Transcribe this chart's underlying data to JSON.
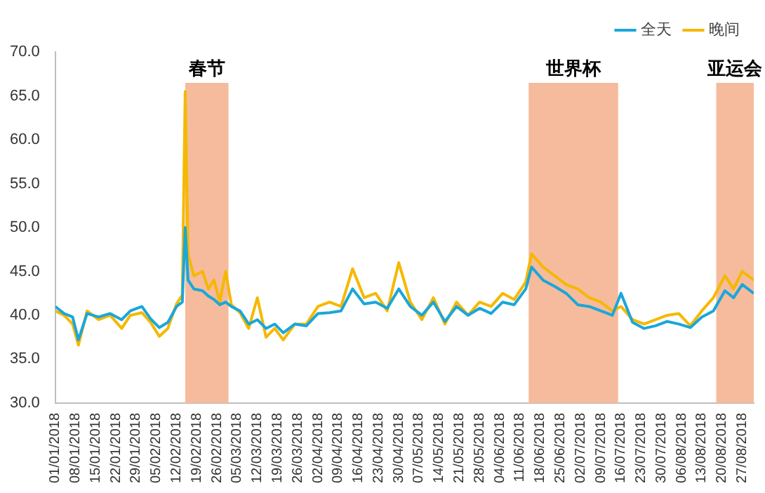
{
  "chart_data": {
    "type": "line",
    "legend": "top right",
    "grid": false,
    "marker": "none",
    "line_style": "solid",
    "x": [
      "2018-01-01",
      "2018-01-04",
      "2018-01-07",
      "2018-01-09",
      "2018-01-12",
      "2018-01-16",
      "2018-01-20",
      "2018-01-24",
      "2018-01-27",
      "2018-01-31",
      "2018-02-03",
      "2018-02-06",
      "2018-02-09",
      "2018-02-12",
      "2018-02-14",
      "2018-02-15",
      "2018-02-16",
      "2018-02-18",
      "2018-02-21",
      "2018-02-23",
      "2018-02-25",
      "2018-02-27",
      "2018-03-01",
      "2018-03-03",
      "2018-03-06",
      "2018-03-09",
      "2018-03-12",
      "2018-03-15",
      "2018-03-18",
      "2018-03-21",
      "2018-03-25",
      "2018-03-29",
      "2018-04-02",
      "2018-04-06",
      "2018-04-10",
      "2018-04-14",
      "2018-04-18",
      "2018-04-22",
      "2018-04-26",
      "2018-04-30",
      "2018-05-04",
      "2018-05-08",
      "2018-05-12",
      "2018-05-16",
      "2018-05-20",
      "2018-05-24",
      "2018-05-28",
      "2018-06-01",
      "2018-06-05",
      "2018-06-09",
      "2018-06-13",
      "2018-06-15",
      "2018-06-19",
      "2018-06-23",
      "2018-06-27",
      "2018-07-01",
      "2018-07-05",
      "2018-07-09",
      "2018-07-13",
      "2018-07-16",
      "2018-07-20",
      "2018-07-24",
      "2018-07-28",
      "2018-08-01",
      "2018-08-05",
      "2018-08-09",
      "2018-08-13",
      "2018-08-17",
      "2018-08-21",
      "2018-08-24",
      "2018-08-27",
      "2018-08-31"
    ],
    "series": [
      {
        "name": "全天",
        "color": "#1aa7d8",
        "values": [
          41.0,
          40.2,
          39.8,
          37.2,
          40.2,
          39.8,
          40.2,
          39.5,
          40.5,
          41.0,
          39.6,
          38.6,
          39.2,
          41.0,
          41.5,
          50.0,
          44.0,
          43.0,
          42.8,
          42.2,
          41.8,
          41.2,
          41.5,
          41.0,
          40.5,
          39.0,
          39.5,
          38.5,
          39.0,
          38.0,
          39.0,
          38.8,
          40.2,
          40.3,
          40.5,
          43.0,
          41.3,
          41.5,
          40.8,
          43.0,
          41.0,
          40.0,
          41.5,
          39.3,
          41.0,
          40.0,
          40.8,
          40.2,
          41.5,
          41.2,
          43.0,
          45.5,
          44.0,
          43.3,
          42.5,
          41.2,
          41.0,
          40.5,
          40.0,
          42.5,
          39.2,
          38.5,
          38.8,
          39.3,
          39.0,
          38.6,
          39.8,
          40.5,
          42.8,
          42.0,
          43.5,
          42.5
        ]
      },
      {
        "name": "晚间",
        "color": "#f5b800",
        "values": [
          40.5,
          40.0,
          39.0,
          36.6,
          40.5,
          39.5,
          40.0,
          38.5,
          40.0,
          40.3,
          39.2,
          37.6,
          38.5,
          41.3,
          42.3,
          65.5,
          47.0,
          44.5,
          45.0,
          43.0,
          44.0,
          41.5,
          45.0,
          41.2,
          40.3,
          38.5,
          42.0,
          37.5,
          38.5,
          37.2,
          39.0,
          39.0,
          41.0,
          41.5,
          41.0,
          45.3,
          42.0,
          42.5,
          40.5,
          46.0,
          41.5,
          39.5,
          42.0,
          39.0,
          41.5,
          40.0,
          41.5,
          41.0,
          42.5,
          41.8,
          43.8,
          47.0,
          45.5,
          44.5,
          43.5,
          43.0,
          42.0,
          41.5,
          40.5,
          41.0,
          39.5,
          39.0,
          39.5,
          40.0,
          40.2,
          38.8,
          40.5,
          42.0,
          44.5,
          43.0,
          45.0,
          44.0
        ]
      }
    ],
    "xlim": [
      "2018-01-01",
      "2018-08-31"
    ],
    "xticks": [
      {
        "value": "2018-01-01",
        "label": "01/01/2018"
      },
      {
        "value": "2018-01-08",
        "label": "08/01/2018"
      },
      {
        "value": "2018-01-15",
        "label": "15/01/2018"
      },
      {
        "value": "2018-01-22",
        "label": "22/01/2018"
      },
      {
        "value": "2018-01-29",
        "label": "29/01/2018"
      },
      {
        "value": "2018-02-05",
        "label": "05/02/2018"
      },
      {
        "value": "2018-02-12",
        "label": "12/02/2018"
      },
      {
        "value": "2018-02-19",
        "label": "19/02/2018"
      },
      {
        "value": "2018-02-26",
        "label": "26/02/2018"
      },
      {
        "value": "2018-03-05",
        "label": "05/03/2018"
      },
      {
        "value": "2018-03-12",
        "label": "12/03/2018"
      },
      {
        "value": "2018-03-19",
        "label": "19/03/2018"
      },
      {
        "value": "2018-03-26",
        "label": "26/03/2018"
      },
      {
        "value": "2018-04-02",
        "label": "02/04/2018"
      },
      {
        "value": "2018-04-09",
        "label": "09/04/2018"
      },
      {
        "value": "2018-04-16",
        "label": "16/04/2018"
      },
      {
        "value": "2018-04-23",
        "label": "23/04/2018"
      },
      {
        "value": "2018-04-30",
        "label": "30/04/2018"
      },
      {
        "value": "2018-05-07",
        "label": "07/05/2018"
      },
      {
        "value": "2018-05-14",
        "label": "14/05/2018"
      },
      {
        "value": "2018-05-21",
        "label": "21/05/2018"
      },
      {
        "value": "2018-05-28",
        "label": "28/05/2018"
      },
      {
        "value": "2018-06-04",
        "label": "04/06/2018"
      },
      {
        "value": "2018-06-11",
        "label": "11/06/2018"
      },
      {
        "value": "2018-06-18",
        "label": "18/06/2018"
      },
      {
        "value": "2018-06-25",
        "label": "25/06/2018"
      },
      {
        "value": "2018-07-02",
        "label": "02/07/2018"
      },
      {
        "value": "2018-07-09",
        "label": "09/07/2018"
      },
      {
        "value": "2018-07-16",
        "label": "16/07/2018"
      },
      {
        "value": "2018-07-23",
        "label": "23/07/2018"
      },
      {
        "value": "2018-07-30",
        "label": "30/07/2018"
      },
      {
        "value": "2018-08-06",
        "label": "06/08/2018"
      },
      {
        "value": "2018-08-13",
        "label": "13/08/2018"
      },
      {
        "value": "2018-08-20",
        "label": "20/08/2018"
      },
      {
        "value": "2018-08-27",
        "label": "27/08/2018"
      }
    ],
    "ylim": [
      30,
      70
    ],
    "yticks": [
      {
        "value": 30,
        "label": "30.0"
      },
      {
        "value": 35,
        "label": "35.0"
      },
      {
        "value": 40,
        "label": "40.0"
      },
      {
        "value": 45,
        "label": "45.0"
      },
      {
        "value": 50,
        "label": "50.0"
      },
      {
        "value": 55,
        "label": "55.0"
      },
      {
        "value": 60,
        "label": "60.0"
      },
      {
        "value": 65,
        "label": "65.0"
      },
      {
        "value": 70,
        "label": "70.0"
      }
    ],
    "bands": [
      {
        "axis": "x",
        "from": "2018-02-15",
        "to": "2018-03-02",
        "label": "春节",
        "color": "#f6bb9c"
      },
      {
        "axis": "x",
        "from": "2018-06-14",
        "to": "2018-07-15",
        "label": "世界杯",
        "color": "#f6bb9c"
      },
      {
        "axis": "x",
        "from": "2018-08-18",
        "to": "2018-09-02",
        "label": "亚运会",
        "color": "#f6bb9c"
      }
    ]
  }
}
